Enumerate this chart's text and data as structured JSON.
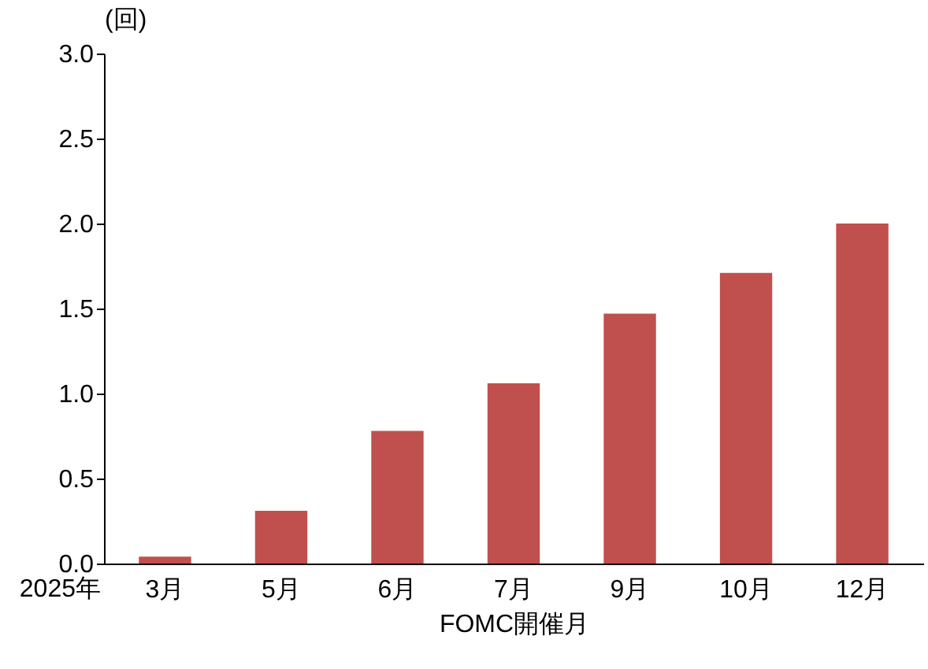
{
  "chart_data": {
    "type": "bar",
    "ylabel": "(回)",
    "xlabel": "FOMC開催月",
    "annotations": [
      "2025年"
    ],
    "categories": [
      "3月",
      "5月",
      "6月",
      "7月",
      "9月",
      "10月",
      "12月"
    ],
    "values": [
      0.04,
      0.31,
      0.78,
      1.06,
      1.47,
      1.71,
      2.0
    ],
    "color": "#c0504d",
    "ylim": [
      0,
      3.0
    ],
    "yticks": [
      {
        "value": 0,
        "label": "0.0"
      },
      {
        "value": 0.5,
        "label": "0.5"
      },
      {
        "value": 1,
        "label": "1.0"
      },
      {
        "value": 1.5,
        "label": "1.5"
      },
      {
        "value": 2,
        "label": "2.0"
      },
      {
        "value": 2.5,
        "label": "2.5"
      },
      {
        "value": 3,
        "label": "3.0"
      }
    ],
    "grid": false
  }
}
